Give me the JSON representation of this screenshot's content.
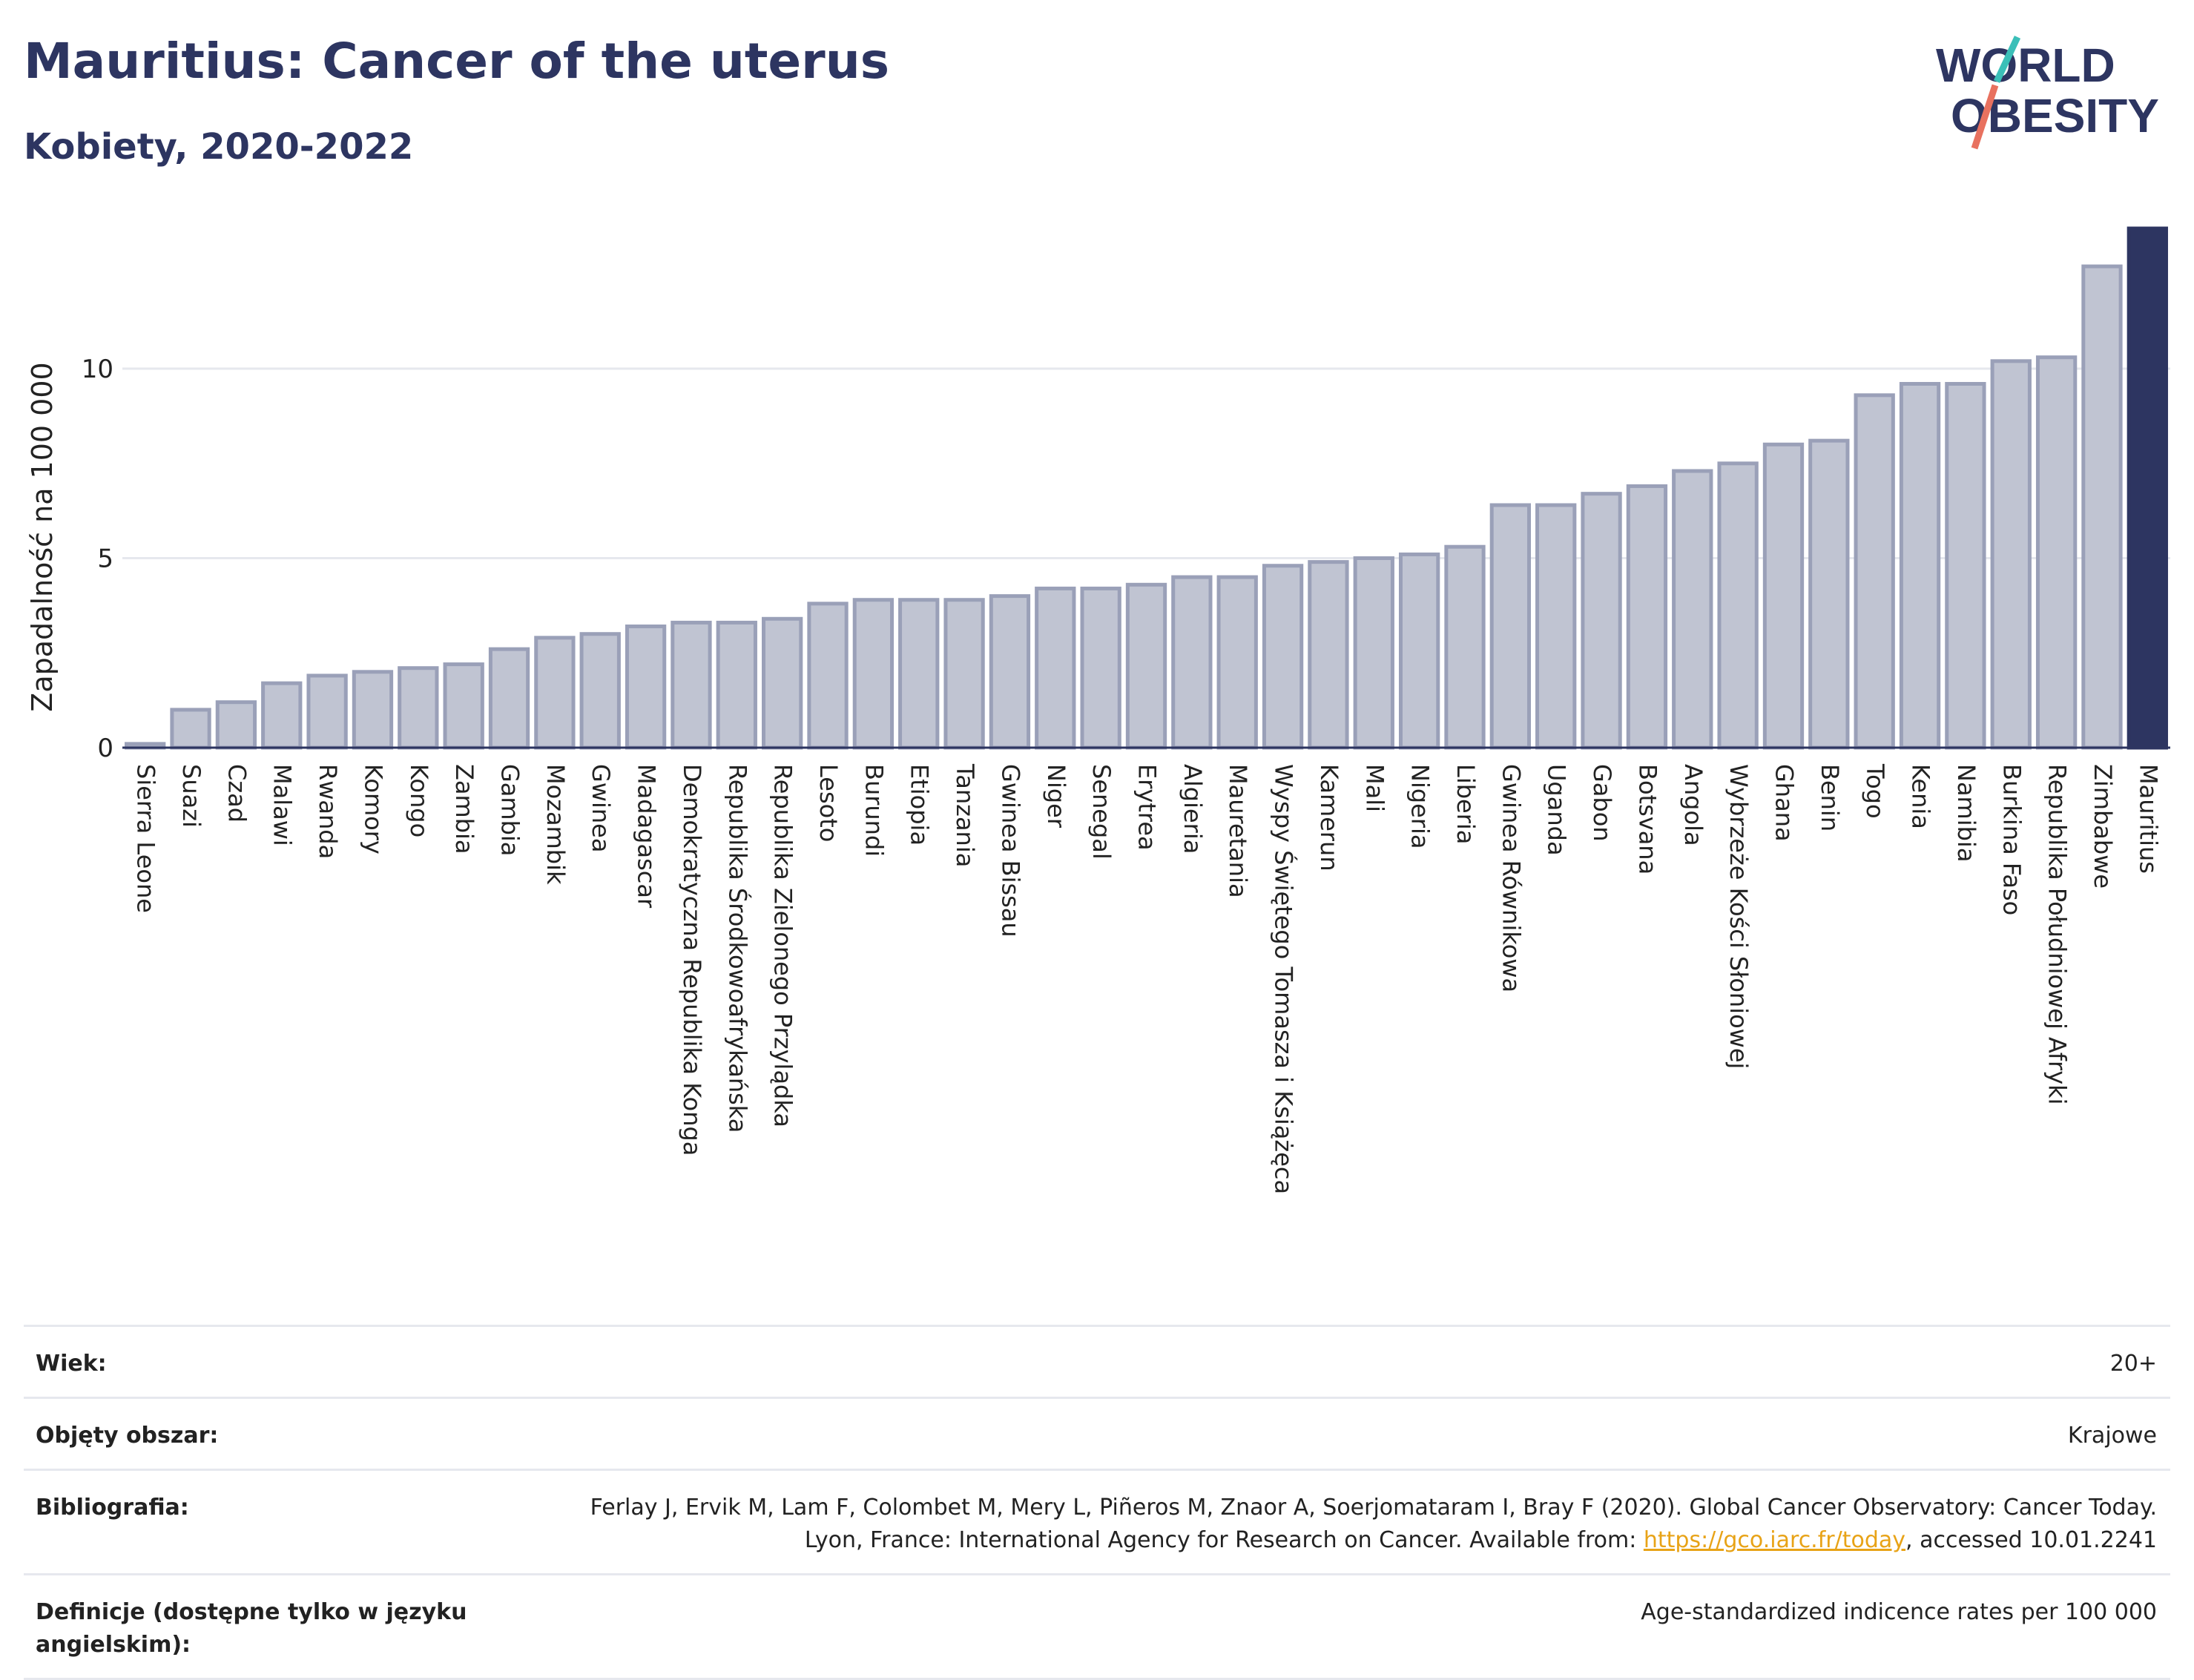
{
  "header": {
    "title": "Mauritius: Cancer of the uterus",
    "subtitle": "Kobiety, 2020-2022"
  },
  "logo": {
    "line1": "WORLD",
    "line2": "OBESITY",
    "accent_teal": "#3bbfb8",
    "accent_coral": "#e8715f"
  },
  "chart_data": {
    "type": "bar",
    "title": "Mauritius: Cancer of the uterus",
    "subtitle": "Kobiety, 2020-2022",
    "ylabel": "Zapadalność na 100 000",
    "xlabel": "",
    "ylim": [
      0,
      13.7
    ],
    "yticks": [
      0,
      5,
      10
    ],
    "grid": true,
    "highlight": "Mauritius",
    "colors": {
      "bar": "#c0c4d2",
      "bar_edge": "#9aa0b8",
      "highlight": "#2d3561"
    },
    "categories": [
      "Sierra Leone",
      "Suazi",
      "Czad",
      "Malawi",
      "Rwanda",
      "Komory",
      "Kongo",
      "Zambia",
      "Gambia",
      "Mozambik",
      "Gwinea",
      "Madagascar",
      "Demokratyczna Republika Konga",
      "Republika Środkowoafrykańska",
      "Republika Zielonego Przylądka",
      "Lesoto",
      "Burundi",
      "Etiopia",
      "Tanzania",
      "Gwinea Bissau",
      "Niger",
      "Senegal",
      "Erytrea",
      "Algieria",
      "Mauretania",
      "Wyspy Świętego Tomasza i Książęca",
      "Kamerun",
      "Mali",
      "Nigeria",
      "Liberia",
      "Gwinea Równikowa",
      "Uganda",
      "Gabon",
      "Botsvana",
      "Angola",
      "Wybrzeże Kości Słoniowej",
      "Ghana",
      "Benin",
      "Togo",
      "Kenia",
      "Namibia",
      "Burkina Faso",
      "Republika Południowej Afryki",
      "Zimbabwe",
      "Mauritius"
    ],
    "values": [
      0.1,
      1.0,
      1.2,
      1.7,
      1.9,
      2.0,
      2.1,
      2.2,
      2.6,
      2.9,
      3.0,
      3.2,
      3.3,
      3.3,
      3.4,
      3.8,
      3.9,
      3.9,
      3.9,
      4.0,
      4.2,
      4.2,
      4.3,
      4.5,
      4.5,
      4.8,
      4.9,
      5.0,
      5.1,
      5.3,
      6.4,
      6.4,
      6.7,
      6.9,
      7.3,
      7.5,
      8.0,
      8.1,
      9.3,
      9.6,
      9.6,
      10.2,
      10.3,
      12.7,
      13.7
    ]
  },
  "meta": [
    {
      "label": "Wiek:",
      "value": "20+"
    },
    {
      "label": "Objęty obszar:",
      "value": "Krajowe"
    },
    {
      "label": "Bibliografia:",
      "value_before": "Ferlay J, Ervik M, Lam F, Colombet M, Mery L, Piñeros M, Znaor A, Soerjomataram I, Bray F (2020). Global Cancer Observatory: Cancer Today. Lyon, France: International Agency for Research on Cancer. Available from: ",
      "link": "https://gco.iarc.fr/today",
      "value_after": ", accessed 10.01.2241"
    },
    {
      "label": "Definicje (dostępne tylko w języku angielskim):",
      "value": "Age-standardized indicence rates per 100 000"
    }
  ]
}
